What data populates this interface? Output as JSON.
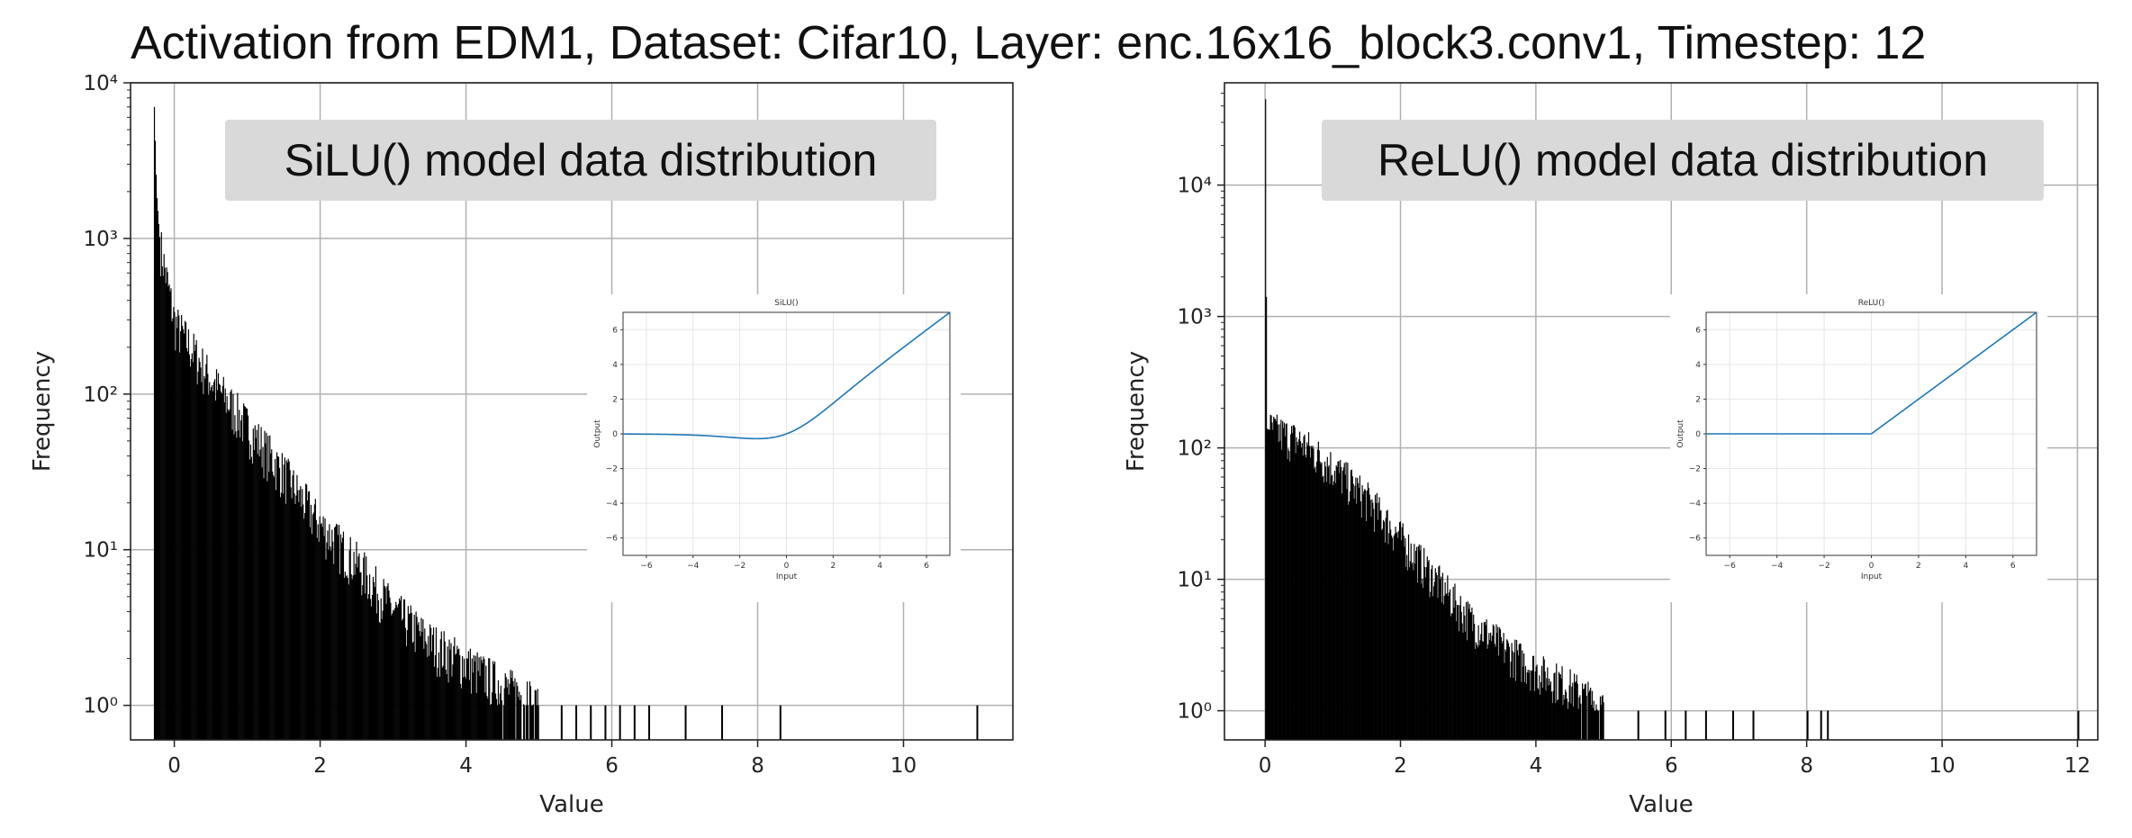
{
  "title": "Activation from EDM1, Dataset: Cifar10, Layer: enc.16x16_block3.conv1, Timestep: 12",
  "chart_data": [
    {
      "type": "histogram",
      "label": "SiLU() model data distribution",
      "xlabel": "Value",
      "ylabel": "Frequency",
      "xlim": [
        -0.6,
        11.5
      ],
      "ylim": [
        0.6,
        10000
      ],
      "yscale": "log",
      "xticks": [
        0,
        2,
        4,
        6,
        8,
        10
      ],
      "yticks": [
        "10^0",
        "10^1",
        "10^2",
        "10^3",
        "10^4"
      ],
      "grid": true,
      "bar_color": "#000000",
      "histogram": {
        "x": [
          -0.28,
          -0.25,
          -0.2,
          -0.1,
          0.0,
          0.2,
          0.5,
          1.0,
          1.5,
          2.0,
          2.5,
          3.0,
          3.5,
          4.0,
          4.5,
          5.0
        ],
        "y": [
          7000,
          2000,
          900,
          500,
          280,
          200,
          120,
          60,
          30,
          14,
          8,
          4,
          2.5,
          1.8,
          1.3,
          1
        ],
        "sparse_ones": [
          5.3,
          5.5,
          5.7,
          5.9,
          6.1,
          6.3,
          6.5,
          7.0,
          7.5,
          8.3,
          11.0
        ]
      },
      "inset": {
        "title": "SiLU()",
        "xlabel": "Input",
        "ylabel": "Output",
        "xlim": [
          -7,
          7
        ],
        "ylim": [
          -7,
          7
        ],
        "xticks": [
          -6,
          -4,
          -2,
          0,
          2,
          4,
          6
        ],
        "yticks": [
          -6,
          -4,
          -2,
          0,
          2,
          4,
          6
        ],
        "function": "silu",
        "line_color": "#1f77b4"
      }
    },
    {
      "type": "histogram",
      "label": "ReLU() model data distribution",
      "xlabel": "Value",
      "ylabel": "Frequency",
      "xlim": [
        -0.6,
        12.3
      ],
      "ylim": [
        0.6,
        60000
      ],
      "yscale": "log",
      "xticks": [
        0,
        2,
        4,
        6,
        8,
        10,
        12
      ],
      "yticks": [
        "10^0",
        "10^1",
        "10^2",
        "10^3",
        "10^4"
      ],
      "grid": true,
      "bar_color": "#000000",
      "histogram": {
        "x": [
          0.0,
          0.02,
          0.5,
          1.0,
          1.5,
          2.0,
          2.5,
          3.0,
          3.5,
          4.0,
          4.5,
          5.0
        ],
        "y": [
          45000,
          140,
          110,
          70,
          40,
          20,
          10,
          5,
          3,
          2,
          1.5,
          1
        ],
        "sparse_ones": [
          5.5,
          5.9,
          6.2,
          6.5,
          6.9,
          7.2,
          8.0,
          8.2,
          8.3,
          12.0
        ]
      },
      "inset": {
        "title": "ReLU()",
        "xlabel": "Input",
        "ylabel": "Output",
        "xlim": [
          -7,
          7
        ],
        "ylim": [
          -7,
          7
        ],
        "xticks": [
          -6,
          -4,
          -2,
          0,
          2,
          4,
          6
        ],
        "yticks": [
          -6,
          -4,
          -2,
          0,
          2,
          4,
          6
        ],
        "function": "relu",
        "line_color": "#1f77b4"
      }
    }
  ]
}
